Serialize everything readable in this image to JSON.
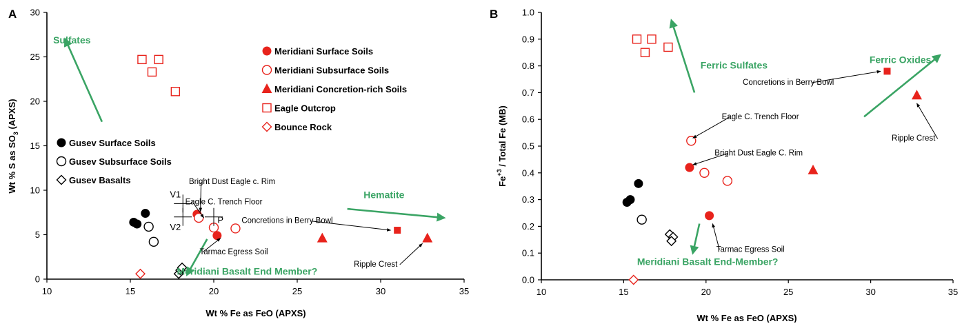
{
  "chart_data": [
    {
      "panel": "A",
      "type": "scatter",
      "xlabel": "Wt % Fe as FeO (APXS)",
      "ylabel": "Wt % S as SO",
      "ylabel_sub": "3",
      "ylabel_tail": " (APXS)",
      "xlim": [
        10,
        35
      ],
      "ylim": [
        0,
        30
      ],
      "xticks": [
        "10",
        "15",
        "20",
        "25",
        "30",
        "35"
      ],
      "yticks": [
        "0",
        "5",
        "10",
        "15",
        "20",
        "25",
        "30"
      ],
      "grid": false,
      "series": [
        {
          "name": "Meridiani Surface Soils",
          "marker": "circle-filled",
          "color": "#e8231c",
          "points": [
            [
              19.0,
              7.3
            ],
            [
              20.2,
              4.9
            ]
          ]
        },
        {
          "name": "Meridiani Subsurface Soils",
          "marker": "circle-open",
          "color": "#e8231c",
          "points": [
            [
              19.1,
              6.9
            ],
            [
              20.0,
              5.8
            ],
            [
              21.3,
              5.7
            ]
          ]
        },
        {
          "name": "Meridiani Concretion-rich Soils",
          "marker": "triangle-filled",
          "color": "#e8231c",
          "points": [
            [
              26.5,
              4.6
            ],
            [
              32.8,
              4.6
            ]
          ]
        },
        {
          "name": "Eagle Outcrop",
          "marker": "square-open",
          "color": "#e8231c",
          "points": [
            [
              15.7,
              24.7
            ],
            [
              16.7,
              24.7
            ],
            [
              16.3,
              23.3
            ],
            [
              17.7,
              21.1
            ]
          ]
        },
        {
          "name": "Bounce Rock",
          "marker": "diamond-open",
          "color": "#e8231c",
          "points": [
            [
              15.6,
              0.6
            ]
          ]
        },
        {
          "name": "Gusev Surface Soils",
          "marker": "circle-filled",
          "color": "#000000",
          "points": [
            [
              15.2,
              6.4
            ],
            [
              15.4,
              6.2
            ],
            [
              15.9,
              7.4
            ]
          ]
        },
        {
          "name": "Gusev Subsurface Soils",
          "marker": "circle-open",
          "color": "#000000",
          "points": [
            [
              16.1,
              5.9
            ],
            [
              16.4,
              4.2
            ]
          ]
        },
        {
          "name": "Gusev Basalts",
          "marker": "diamond-open",
          "color": "#000000",
          "points": [
            [
              17.9,
              0.6
            ],
            [
              18.0,
              1.0
            ],
            [
              18.1,
              1.3
            ]
          ]
        },
        {
          "name": "",
          "marker": "square-filled",
          "color": "#e8231c",
          "points": [
            [
              31.0,
              5.5
            ]
          ]
        }
      ],
      "legend": {
        "placement": "top-right",
        "entries": [
          "Meridiani Surface Soils",
          "Meridiani Subsurface Soils",
          "Meridiani Concretion-rich Soils",
          "Eagle Outcrop",
          "Bounce Rock"
        ]
      },
      "legend2": {
        "placement": "left",
        "entries": [
          "Gusev Surface Soils",
          "Gusev Subsurface Soils",
          "Gusev Basalts"
        ]
      },
      "green_labels": [
        {
          "text": "Sulfates",
          "at": [
            11.5,
            26.5
          ]
        },
        {
          "text": "Hematite",
          "at": [
            30.2,
            9.1
          ]
        },
        {
          "text": "Meridiani Basalt End Member?",
          "at": [
            22.0,
            0.5
          ]
        }
      ],
      "green_arrows": [
        {
          "from": [
            13.3,
            17.7
          ],
          "to": [
            11.1,
            27.0
          ]
        },
        {
          "from": [
            28.0,
            7.9
          ],
          "to": [
            33.8,
            6.9
          ]
        },
        {
          "from": [
            19.6,
            4.5
          ],
          "to": [
            18.4,
            0.5
          ]
        }
      ],
      "annotations": [
        {
          "text": "Bright Dust Eagle c. Rim",
          "at": [
            21.1,
            10.7
          ],
          "points_to": [
            19.2,
            7.6
          ]
        },
        {
          "text": "Eagle C. Trench Floor",
          "at": [
            20.6,
            8.4
          ],
          "points_to": [
            19.4,
            6.9
          ]
        },
        {
          "text": "Concretions in Berry Bowl",
          "at": [
            24.4,
            6.3
          ],
          "points_to": [
            30.6,
            5.5
          ]
        },
        {
          "text": "Tarmac Egress Soil",
          "at": [
            21.2,
            2.8
          ],
          "points_to": [
            20.4,
            4.6
          ]
        },
        {
          "text": "Ripple Crest",
          "at": [
            29.7,
            1.4
          ],
          "points_to": [
            32.5,
            4.0
          ]
        }
      ],
      "site_markers": [
        {
          "text": "V1",
          "anchor": [
            18.15,
            8.5
          ],
          "label_at": [
            17.7,
            9.2
          ]
        },
        {
          "text": "V2",
          "anchor": [
            18.15,
            7.0
          ],
          "label_at": [
            17.7,
            5.5
          ]
        },
        {
          "text": "P",
          "anchor": [
            20.0,
            7.0
          ],
          "label_at": [
            20.4,
            6.3
          ]
        }
      ]
    },
    {
      "panel": "B",
      "type": "scatter",
      "xlabel": "Wt % Fe as FeO (APXS)",
      "ylabel": "Fe",
      "ylabel_sup": "+3",
      "ylabel_tail": " / Total Fe (MB)",
      "xlim": [
        10,
        35
      ],
      "ylim": [
        0,
        1
      ],
      "xticks": [
        "10",
        "15",
        "20",
        "25",
        "30",
        "35"
      ],
      "yticks": [
        "0.0",
        "0.1",
        "0.2",
        "0.3",
        "0.4",
        "0.5",
        "0.6",
        "0.7",
        "0.8",
        "0.9",
        "1.0"
      ],
      "grid": false,
      "series": [
        {
          "name": "Meridiani Surface Soils",
          "marker": "circle-filled",
          "color": "#e8231c",
          "points": [
            [
              19.0,
              0.42
            ],
            [
              20.2,
              0.24
            ]
          ]
        },
        {
          "name": "Meridiani Subsurface Soils",
          "marker": "circle-open",
          "color": "#e8231c",
          "points": [
            [
              19.1,
              0.52
            ],
            [
              19.9,
              0.4
            ],
            [
              21.3,
              0.37
            ]
          ]
        },
        {
          "name": "Meridiani Concretion-rich Soils",
          "marker": "triangle-filled",
          "color": "#e8231c",
          "points": [
            [
              26.5,
              0.41
            ],
            [
              32.8,
              0.69
            ]
          ]
        },
        {
          "name": "Eagle Outcrop",
          "marker": "square-open",
          "color": "#e8231c",
          "points": [
            [
              15.8,
              0.9
            ],
            [
              16.7,
              0.9
            ],
            [
              16.3,
              0.85
            ],
            [
              17.7,
              0.87
            ]
          ]
        },
        {
          "name": "Bounce Rock",
          "marker": "diamond-open",
          "color": "#e8231c",
          "points": [
            [
              15.6,
              0.0
            ]
          ]
        },
        {
          "name": "Gusev Surface Soils",
          "marker": "circle-filled",
          "color": "#000000",
          "points": [
            [
              15.2,
              0.29
            ],
            [
              15.4,
              0.3
            ],
            [
              15.9,
              0.36
            ]
          ]
        },
        {
          "name": "Gusev Subsurface Soils",
          "marker": "circle-open",
          "color": "#000000",
          "points": [
            [
              16.1,
              0.225
            ]
          ]
        },
        {
          "name": "Gusev Basalts",
          "marker": "diamond-open",
          "color": "#000000",
          "points": [
            [
              17.8,
              0.17
            ],
            [
              18.0,
              0.16
            ],
            [
              17.9,
              0.145
            ]
          ]
        },
        {
          "name": "",
          "marker": "square-filled",
          "color": "#e8231c",
          "points": [
            [
              31.0,
              0.78
            ]
          ]
        }
      ],
      "green_labels": [
        {
          "text": "Ferric Sulfates",
          "at": [
            21.7,
            0.79
          ]
        },
        {
          "text": "Ferric Oxides",
          "at": [
            31.8,
            0.81
          ]
        },
        {
          "text": "Meridiani Basalt End-Member?",
          "at": [
            20.1,
            0.055
          ]
        }
      ],
      "green_arrows": [
        {
          "from": [
            19.3,
            0.7
          ],
          "to": [
            17.9,
            0.97
          ]
        },
        {
          "from": [
            29.6,
            0.61
          ],
          "to": [
            34.2,
            0.84
          ]
        },
        {
          "from": [
            19.6,
            0.21
          ],
          "to": [
            19.2,
            0.1
          ]
        }
      ],
      "annotations": [
        {
          "text": "Concretions in Berry Bowl",
          "at": [
            25.0,
            0.73
          ],
          "points_to": [
            30.6,
            0.78
          ]
        },
        {
          "text": "Eagle C. Trench Floor",
          "at": [
            23.3,
            0.6
          ],
          "points_to": [
            19.2,
            0.53
          ]
        },
        {
          "text": "Bright Dust Eagle C. Rim",
          "at": [
            23.2,
            0.465
          ],
          "points_to": [
            19.2,
            0.43
          ]
        },
        {
          "text": "Tarmac Egress Soil",
          "at": [
            22.7,
            0.105
          ],
          "points_to": [
            20.4,
            0.21
          ]
        },
        {
          "text": "Ripple Crest",
          "at": [
            32.6,
            0.52
          ],
          "points_to": [
            32.8,
            0.66
          ]
        }
      ]
    }
  ],
  "colors": {
    "meridiani": "#e8231c",
    "gusev": "#000000",
    "trend_green": "#3aa464"
  }
}
